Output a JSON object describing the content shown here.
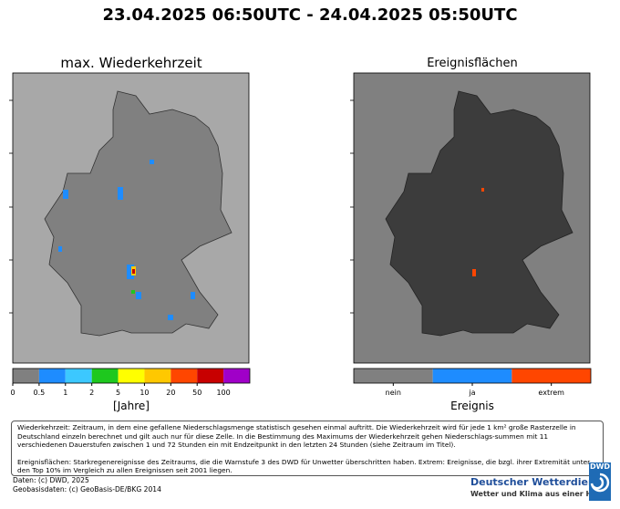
{
  "title": "23.04.2025 06:50UTC - 24.04.2025 05:50UTC",
  "left_panel": {
    "title": "max. Wiederkehrzeit",
    "colorbar": {
      "colors": [
        "#808080",
        "#1e8cff",
        "#3cc8ff",
        "#1ec81e",
        "#ffff00",
        "#ffc800",
        "#ff4600",
        "#c80000",
        "#a000c8"
      ],
      "ticks": [
        0,
        0.5,
        1,
        2,
        5,
        10,
        20,
        50,
        100
      ],
      "label": "[Jahre]"
    }
  },
  "right_panel": {
    "title": "Ereignisflächen",
    "colorbar": {
      "colors": [
        "#808080",
        "#1e8cff",
        "#ff4600"
      ],
      "labels": [
        "nein",
        "ja",
        "extrem"
      ],
      "label": "Ereignis"
    }
  },
  "note": [
    "Wiederkehrzeit: Zeitraum, in dem eine gefallene Niederschlagsmenge statistisch gesehen einmal auftritt. Die Wiederkehrzeit wird für jede 1 km² große Rasterzelle in Deutschland einzeln berechnet und gilt auch nur für diese Zelle. In die Bestimmung des Maximums der Wiederkehrzeit gehen Niederschlags-summen mit 11 verschiedenen Dauerstufen zwischen 1 und 72 Stunden ein mit Endzeitpunkt in den letzten 24 Stunden (siehe Zeitraum im Titel).",
    "Ereignisflächen: Starkregenereignisse des Zeitraums, die die Warnstufe 3 des DWD für Unwetter überschritten  haben. Extrem: Ereignisse, die bzgl. ihrer Extremität unter den Top 10% im Vergleich zu allen Ereignissen seit 2001 liegen."
  ],
  "footer": {
    "source": "Daten: (c) DWD, 2025",
    "geo": "Geobasisdaten: (c) GeoBasis-DE/BKG 2014",
    "logo": "DWD",
    "org": "Deutscher Wetterdienst",
    "tagline": "Wetter und Klima aus einer Hand"
  }
}
